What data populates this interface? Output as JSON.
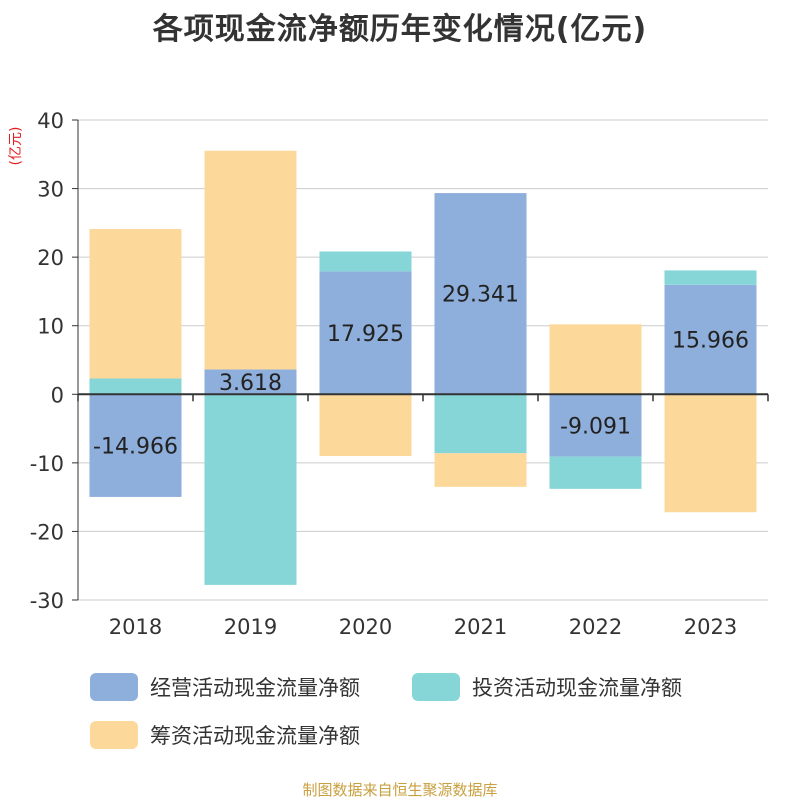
{
  "chart_data": {
    "type": "bar",
    "stacked": true,
    "title": "各项现金流净额历年变化情况(亿元)",
    "ylabel": "(亿元)",
    "xlabel": "",
    "categories": [
      "2018",
      "2019",
      "2020",
      "2021",
      "2022",
      "2023"
    ],
    "ylim": [
      -30,
      40
    ],
    "yticks": [
      40,
      30,
      20,
      10,
      0,
      -10,
      -20,
      -30
    ],
    "grid": true,
    "legend_position": "bottom",
    "series": [
      {
        "name": "经营活动现金流量净额",
        "color": "#8eaedb",
        "values": [
          -14.966,
          3.618,
          17.925,
          29.341,
          -9.091,
          15.966
        ],
        "labels": [
          "-14.966",
          "3.618",
          "17.925",
          "29.341",
          "-9.091",
          "15.966"
        ]
      },
      {
        "name": "投资活动现金流量净额",
        "color": "#86d6d8",
        "values": [
          2.3,
          -27.8,
          2.9,
          -8.6,
          -4.7,
          2.1
        ]
      },
      {
        "name": "筹资活动现金流量净额",
        "color": "#fdd89b",
        "values": [
          21.8,
          31.9,
          -9.0,
          -4.9,
          10.2,
          -17.2
        ]
      }
    ]
  },
  "source_note": "制图数据来自恒生聚源数据库"
}
